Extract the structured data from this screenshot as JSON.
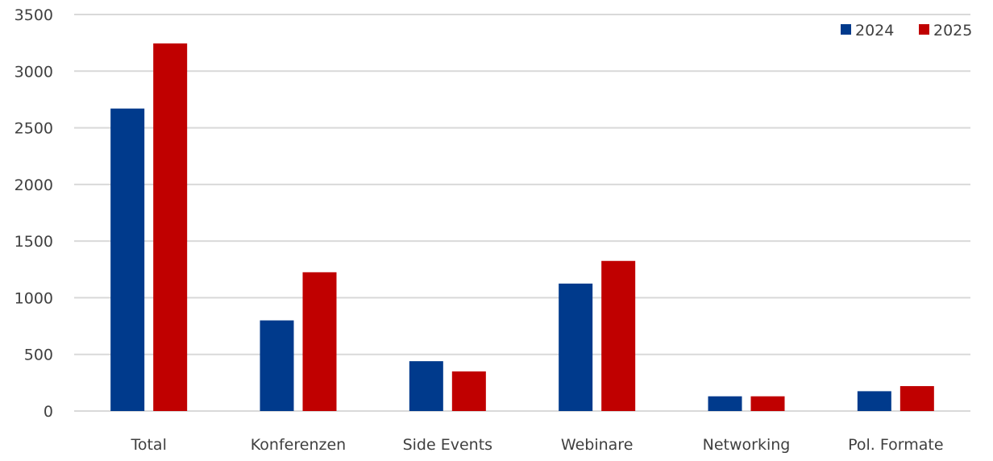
{
  "chart_data": {
    "type": "bar",
    "title": "",
    "xlabel": "",
    "ylabel": "",
    "categories": [
      "Total",
      "Konferenzen",
      "Side Events",
      "Webinare",
      "Networking",
      "Pol. Formate"
    ],
    "series": [
      {
        "name": "2024",
        "color": "#003a8c",
        "values": [
          2670,
          800,
          440,
          1125,
          130,
          175
        ]
      },
      {
        "name": "2025",
        "color": "#c00000",
        "values": [
          3245,
          1225,
          350,
          1325,
          130,
          220
        ]
      }
    ],
    "ylim": [
      0,
      3500
    ],
    "yticks": [
      0,
      500,
      1000,
      1500,
      2000,
      2500,
      3000,
      3500
    ],
    "grid": true,
    "legend_position": "top-right"
  }
}
